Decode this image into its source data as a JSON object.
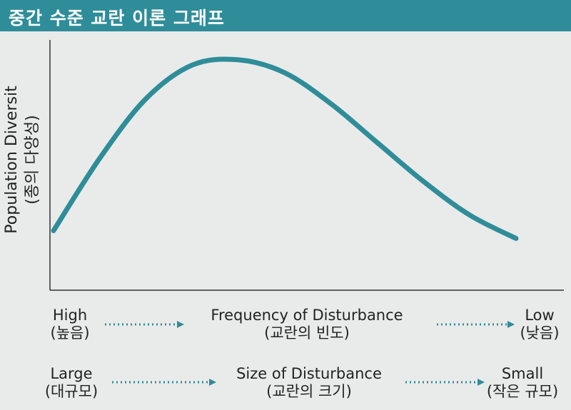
{
  "header": {
    "title": "중간 수준 교란 이론 그래프"
  },
  "colors": {
    "accent": "#2f8d99",
    "axis": "#333333",
    "background": "#e9ebea"
  },
  "chart_data": {
    "type": "line",
    "title": "중간 수준 교란 이론 그래프",
    "ylabel": "Population Diversit",
    "ylabel_sub": "(종의 다양성)",
    "ylim": [
      0,
      10
    ],
    "xlim": [
      0,
      10
    ],
    "grid": false,
    "series": [
      {
        "color": "#2f8d99",
        "x": [
          0,
          1,
          2,
          3,
          4,
          5,
          6,
          7,
          8,
          9,
          10
        ],
        "y": [
          2.3,
          5.1,
          7.4,
          8.7,
          8.9,
          8.4,
          7.2,
          5.7,
          4.2,
          2.9,
          2.0
        ]
      }
    ],
    "x_scales": [
      {
        "label": "Frequency of Disturbance",
        "label_sub": "(교란의 빈도)",
        "left": "High",
        "left_sub": "(높음)",
        "right": "Low",
        "right_sub": "(낮음)"
      },
      {
        "label": "Size of Disturbance",
        "label_sub": "(교란의 크기)",
        "left": "Large",
        "left_sub": "(대규모)",
        "right": "Small",
        "right_sub": "(작은 규모)"
      }
    ]
  }
}
